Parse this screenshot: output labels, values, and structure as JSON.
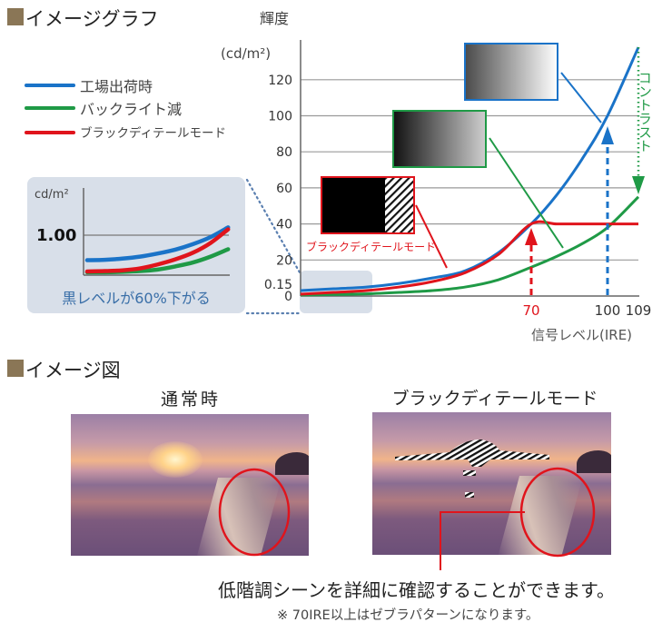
{
  "sections": {
    "graph_title": "イメージグラフ",
    "figure_title": "イメージ図"
  },
  "legend": [
    {
      "label": "工場出荷時",
      "color": "#1a73c8"
    },
    {
      "label": "バックライト減",
      "color": "#1f9a46"
    },
    {
      "label": "ブラックディテールモード",
      "color": "#e0141c"
    }
  ],
  "chart_data": [
    {
      "type": "line",
      "ylabel": "輝度",
      "yunit": "(cd/m²)",
      "xlabel": "信号レベル(IRE)",
      "x_ticks": [
        "70",
        "100",
        "109"
      ],
      "y_ticks": [
        "0",
        "0.15",
        "20",
        "40",
        "60",
        "80",
        "100",
        "120"
      ],
      "ylim": [
        0,
        140
      ],
      "xlim": [
        0,
        109
      ],
      "grid": true,
      "x": [
        0,
        10,
        20,
        30,
        40,
        50,
        60,
        70,
        80,
        90,
        100,
        109
      ],
      "series": [
        {
          "name": "工場出荷時",
          "color": "#1a73c8",
          "values": [
            3,
            4,
            5,
            7,
            10,
            14,
            24,
            40,
            56,
            76,
            100,
            138
          ]
        },
        {
          "name": "バックライト減",
          "color": "#1f9a46",
          "values": [
            0.5,
            0.8,
            1.2,
            2,
            3,
            5,
            9,
            16,
            22,
            29,
            38,
            55
          ]
        },
        {
          "name": "ブラックディテールモード",
          "color": "#e0141c",
          "values": [
            1,
            2,
            3,
            5,
            8,
            13,
            23,
            40,
            40,
            40,
            40,
            40
          ]
        }
      ],
      "annotations": {
        "contrast": "コントラスト",
        "detail_mode_label": "ブラックディテールモード"
      }
    },
    {
      "type": "line",
      "ylabel": "cd/m²",
      "y_ticks": [
        "1.00"
      ],
      "caption": "黒レベルが60%下がる",
      "x": [
        0,
        1,
        2,
        3,
        4,
        5,
        6,
        7,
        8
      ],
      "series": [
        {
          "name": "工場出荷時",
          "color": "#1a73c8",
          "values": [
            0.36,
            0.37,
            0.4,
            0.45,
            0.53,
            0.63,
            0.77,
            0.95,
            1.2
          ]
        },
        {
          "name": "バックライト減",
          "color": "#1f9a46",
          "values": [
            0.05,
            0.05,
            0.06,
            0.08,
            0.12,
            0.2,
            0.3,
            0.45,
            0.64
          ]
        },
        {
          "name": "ブラックディテールモード",
          "color": "#e0141c",
          "values": [
            0.07,
            0.08,
            0.1,
            0.15,
            0.25,
            0.38,
            0.55,
            0.8,
            1.15
          ]
        }
      ]
    }
  ],
  "figure": {
    "normal_title": "通常時",
    "detail_title": "ブラックディテールモード",
    "caption": "低階調シーンを詳細に確認することができます。",
    "note": "※ 70IRE以上はゼブラパターンになります。"
  },
  "colors": {
    "blue": "#1a73c8",
    "green": "#1f9a46",
    "red": "#e0141c",
    "section_square": "#8a7656",
    "inset_bg": "#d8dfe9",
    "inset_caption": "#3a6fa8"
  }
}
